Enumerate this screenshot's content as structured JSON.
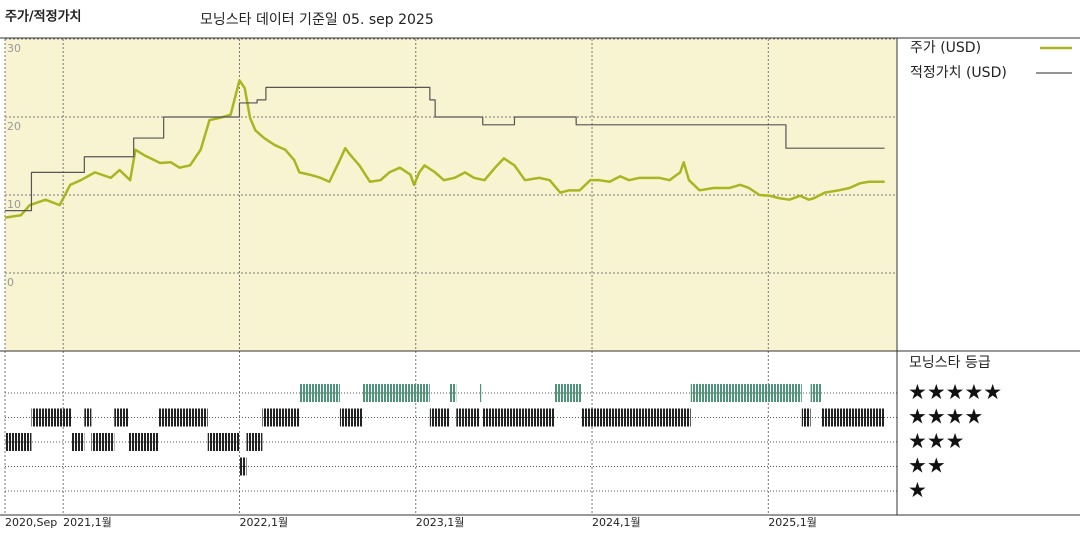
{
  "chart_data": {
    "type": "line",
    "title": "주가/적정가치",
    "subtitle": "모닝스타 데이터 기준일 05. sep 2025",
    "xlim": [
      2020.67,
      2025.73
    ],
    "xticks": [
      {
        "value": 2020.67,
        "label": "2020,Sep"
      },
      {
        "value": 2021,
        "label": "2021,1월"
      },
      {
        "value": 2022,
        "label": "2022,1월"
      },
      {
        "value": 2023,
        "label": "2023,1월"
      },
      {
        "value": 2024,
        "label": "2024,1월"
      },
      {
        "value": 2025,
        "label": "2025,1월"
      }
    ],
    "ylim": [
      -10,
      30
    ],
    "yticks": [
      0,
      10,
      20,
      30
    ],
    "grid": true,
    "background": "#f8f4d2",
    "series": [
      {
        "name": "주가 (USD)",
        "color": "#a9b521",
        "width": 2.5,
        "x": [
          2020.67,
          2020.76,
          2020.81,
          2020.9,
          2020.98,
          2021.04,
          2021.1,
          2021.18,
          2021.27,
          2021.32,
          2021.38,
          2021.41,
          2021.46,
          2021.55,
          2021.61,
          2021.66,
          2021.72,
          2021.78,
          2021.83,
          2021.89,
          2021.95,
          2022.0,
          2022.03,
          2022.06,
          2022.09,
          2022.14,
          2022.2,
          2022.26,
          2022.31,
          2022.34,
          2022.4,
          2022.46,
          2022.51,
          2022.57,
          2022.6,
          2022.63,
          2022.68,
          2022.74,
          2022.8,
          2022.85,
          2022.91,
          2022.97,
          2022.99,
          2023.02,
          2023.05,
          2023.11,
          2023.16,
          2023.22,
          2023.28,
          2023.33,
          2023.39,
          2023.45,
          2023.5,
          2023.56,
          2023.62,
          2023.7,
          2023.76,
          2023.82,
          2023.87,
          2023.93,
          2023.99,
          2024.04,
          2024.1,
          2024.16,
          2024.21,
          2024.27,
          2024.33,
          2024.38,
          2024.44,
          2024.5,
          2024.52,
          2024.55,
          2024.61,
          2024.69,
          2024.78,
          2024.84,
          2024.89,
          2024.95,
          2025.01,
          2025.06,
          2025.12,
          2025.18,
          2025.23,
          2025.26,
          2025.32,
          2025.4,
          2025.46,
          2025.52,
          2025.57,
          2025.66
        ],
        "values": [
          7.1,
          7.4,
          8.7,
          9.4,
          8.7,
          11.3,
          11.9,
          12.9,
          12.2,
          13.2,
          11.9,
          15.8,
          15.1,
          14.1,
          14.2,
          13.5,
          13.8,
          15.8,
          19.6,
          19.9,
          20.3,
          24.7,
          23.7,
          19.9,
          18.3,
          17.3,
          16.4,
          15.8,
          14.5,
          12.9,
          12.6,
          12.2,
          11.7,
          14.5,
          16.0,
          15.1,
          13.8,
          11.7,
          11.9,
          12.9,
          13.5,
          12.6,
          11.3,
          12.9,
          13.8,
          12.9,
          11.9,
          12.2,
          12.9,
          12.2,
          11.9,
          13.5,
          14.7,
          13.8,
          11.9,
          12.2,
          11.9,
          10.3,
          10.6,
          10.6,
          11.9,
          11.9,
          11.7,
          12.4,
          11.9,
          12.2,
          12.2,
          12.2,
          11.9,
          12.9,
          14.2,
          11.9,
          10.6,
          10.9,
          10.9,
          11.3,
          10.9,
          10.0,
          9.9,
          9.6,
          9.4,
          9.9,
          9.4,
          9.6,
          10.3,
          10.6,
          10.9,
          11.5,
          11.7,
          11.7
        ]
      },
      {
        "name": "적정가치 (USD)",
        "color": "#555555",
        "width": 1.2,
        "step": "post",
        "x": [
          2020.67,
          2020.82,
          2021.12,
          2021.4,
          2021.57,
          2022.0,
          2022.1,
          2022.15,
          2023.08,
          2023.11,
          2023.38,
          2023.56,
          2023.91,
          2025.1,
          2025.66
        ],
        "values": [
          8.0,
          12.9,
          14.9,
          17.3,
          20.0,
          21.8,
          22.2,
          23.8,
          22.2,
          20.0,
          19.0,
          20.0,
          19.0,
          16.0,
          16.0
        ]
      }
    ],
    "rating_title": "모닝스타 등급",
    "rating_labels": [
      "★★★★★",
      "★★★★",
      "★★★",
      "★★",
      "★"
    ],
    "rating_color": "#222222",
    "top_rating_color": "#4d9478",
    "ratings": [
      {
        "rating": 3,
        "start": 2020.67,
        "end": 2020.82
      },
      {
        "rating": 4,
        "start": 2020.82,
        "end": 2021.05
      },
      {
        "rating": 3,
        "start": 2021.05,
        "end": 2021.12
      },
      {
        "rating": 4,
        "start": 2021.12,
        "end": 2021.16
      },
      {
        "rating": 3,
        "start": 2021.16,
        "end": 2021.29
      },
      {
        "rating": 4,
        "start": 2021.29,
        "end": 2021.37
      },
      {
        "rating": 3,
        "start": 2021.37,
        "end": 2021.54
      },
      {
        "rating": 4,
        "start": 2021.54,
        "end": 2021.82
      },
      {
        "rating": 3,
        "start": 2021.82,
        "end": 2022.0
      },
      {
        "rating": 2,
        "start": 2022.0,
        "end": 2022.04
      },
      {
        "rating": 3,
        "start": 2022.04,
        "end": 2022.13
      },
      {
        "rating": 4,
        "start": 2022.13,
        "end": 2022.34
      },
      {
        "rating": 5,
        "start": 2022.34,
        "end": 2022.57
      },
      {
        "rating": 4,
        "start": 2022.57,
        "end": 2022.7
      },
      {
        "rating": 5,
        "start": 2022.7,
        "end": 2023.08
      },
      {
        "rating": 4,
        "start": 2023.08,
        "end": 2023.19
      },
      {
        "rating": 5,
        "start": 2023.19,
        "end": 2023.23
      },
      {
        "rating": 4,
        "start": 2023.23,
        "end": 2023.36
      },
      {
        "rating": 5,
        "start": 2023.36,
        "end": 2023.37
      },
      {
        "rating": 4,
        "start": 2023.38,
        "end": 2023.79
      },
      {
        "rating": 5,
        "start": 2023.79,
        "end": 2023.94
      },
      {
        "rating": 4,
        "start": 2023.94,
        "end": 2024.56
      },
      {
        "rating": 5,
        "start": 2024.56,
        "end": 2025.19
      },
      {
        "rating": 4,
        "start": 2025.19,
        "end": 2025.24
      },
      {
        "rating": 5,
        "start": 2025.24,
        "end": 2025.3
      },
      {
        "rating": 4,
        "start": 2025.3,
        "end": 2025.66
      }
    ]
  }
}
